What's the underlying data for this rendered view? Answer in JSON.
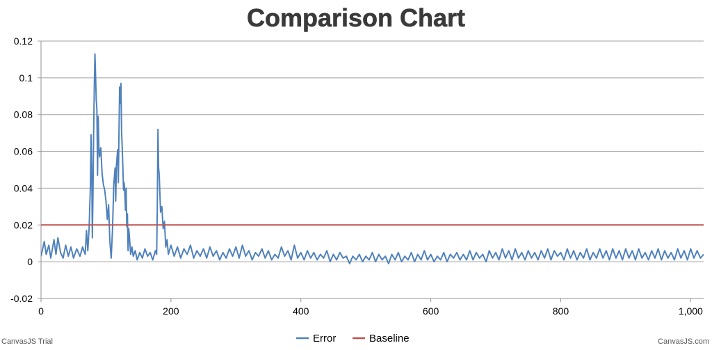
{
  "chart_data": {
    "type": "line",
    "title": "Comparison Chart",
    "xlabel": "",
    "ylabel": "",
    "xlim": [
      0,
      1020
    ],
    "ylim": [
      -0.02,
      0.12
    ],
    "x_ticks": [
      "0",
      "200",
      "400",
      "600",
      "800",
      "1,000"
    ],
    "x_tick_values": [
      0,
      200,
      400,
      600,
      800,
      1000
    ],
    "y_ticks": [
      "-0.02",
      "0",
      "0.02",
      "0.04",
      "0.06",
      "0.08",
      "0.1",
      "0.12"
    ],
    "y_tick_values": [
      -0.02,
      0,
      0.02,
      0.04,
      0.06,
      0.08,
      0.1,
      0.12
    ],
    "grid": "horizontal",
    "legend": "bottom-center",
    "series": [
      {
        "name": "Error",
        "color": "#4f81bc",
        "points": [
          [
            0,
            0.003
          ],
          [
            5,
            0.011
          ],
          [
            8,
            0.004
          ],
          [
            12,
            0.009
          ],
          [
            15,
            0.002
          ],
          [
            20,
            0.012
          ],
          [
            23,
            0.004
          ],
          [
            26,
            0.013
          ],
          [
            30,
            0.005
          ],
          [
            34,
            0.002
          ],
          [
            38,
            0.009
          ],
          [
            42,
            0.003
          ],
          [
            46,
            0.008
          ],
          [
            50,
            0.002
          ],
          [
            55,
            0.007
          ],
          [
            60,
            0.003
          ],
          [
            64,
            0.008
          ],
          [
            68,
            0.004
          ],
          [
            70,
            0.017
          ],
          [
            72,
            0.006
          ],
          [
            74,
            0.018
          ],
          [
            76,
            0.041
          ],
          [
            77,
            0.069
          ],
          [
            78,
            0.052
          ],
          [
            79,
            0.013
          ],
          [
            80,
            0.038
          ],
          [
            81,
            0.07
          ],
          [
            82,
            0.095
          ],
          [
            83,
            0.113
          ],
          [
            84,
            0.101
          ],
          [
            85,
            0.088
          ],
          [
            86,
            0.083
          ],
          [
            87,
            0.047
          ],
          [
            88,
            0.079
          ],
          [
            89,
            0.063
          ],
          [
            90,
            0.057
          ],
          [
            92,
            0.062
          ],
          [
            94,
            0.048
          ],
          [
            96,
            0.042
          ],
          [
            98,
            0.039
          ],
          [
            100,
            0.033
          ],
          [
            102,
            0.023
          ],
          [
            104,
            0.031
          ],
          [
            106,
            0.011
          ],
          [
            108,
            0.002
          ],
          [
            110,
            0.017
          ],
          [
            112,
            0.042
          ],
          [
            114,
            0.051
          ],
          [
            115,
            0.033
          ],
          [
            116,
            0.052
          ],
          [
            118,
            0.061
          ],
          [
            119,
            0.043
          ],
          [
            120,
            0.07
          ],
          [
            121,
            0.095
          ],
          [
            122,
            0.086
          ],
          [
            123,
            0.097
          ],
          [
            124,
            0.071
          ],
          [
            125,
            0.062
          ],
          [
            126,
            0.051
          ],
          [
            127,
            0.039
          ],
          [
            128,
            0.043
          ],
          [
            129,
            0.037
          ],
          [
            130,
            0.028
          ],
          [
            131,
            0.04
          ],
          [
            132,
            0.019
          ],
          [
            133,
            0.026
          ],
          [
            134,
            0.006
          ],
          [
            135,
            0.018
          ],
          [
            136,
            0.014
          ],
          [
            138,
            0.004
          ],
          [
            140,
            0.008
          ],
          [
            142,
            0.003
          ],
          [
            145,
            0.006
          ],
          [
            148,
            0.001
          ],
          [
            152,
            0.005
          ],
          [
            156,
            0.002
          ],
          [
            160,
            0.007
          ],
          [
            164,
            0.003
          ],
          [
            168,
            0.005
          ],
          [
            172,
            0.001
          ],
          [
            176,
            0.006
          ],
          [
            178,
            0.004
          ],
          [
            179,
            0.03
          ],
          [
            180,
            0.072
          ],
          [
            181,
            0.051
          ],
          [
            182,
            0.047
          ],
          [
            184,
            0.027
          ],
          [
            186,
            0.03
          ],
          [
            188,
            0.018
          ],
          [
            190,
            0.022
          ],
          [
            192,
            0.008
          ],
          [
            194,
            0.012
          ],
          [
            196,
            0.004
          ],
          [
            200,
            0.009
          ],
          [
            205,
            0.003
          ],
          [
            210,
            0.008
          ],
          [
            215,
            0.002
          ],
          [
            220,
            0.007
          ],
          [
            225,
            0.004
          ],
          [
            230,
            0.009
          ],
          [
            235,
            0.002
          ],
          [
            240,
            0.006
          ],
          [
            245,
            0.003
          ],
          [
            250,
            0.007
          ],
          [
            255,
            0.002
          ],
          [
            260,
            0.008
          ],
          [
            265,
            0.003
          ],
          [
            270,
            0.006
          ],
          [
            275,
            0.001
          ],
          [
            280,
            0.005
          ],
          [
            285,
            0.002
          ],
          [
            290,
            0.007
          ],
          [
            295,
            0.003
          ],
          [
            300,
            0.008
          ],
          [
            305,
            0.002
          ],
          [
            310,
            0.009
          ],
          [
            315,
            0.003
          ],
          [
            320,
            0.006
          ],
          [
            325,
            0.001
          ],
          [
            330,
            0.005
          ],
          [
            335,
            0.003
          ],
          [
            340,
            0.007
          ],
          [
            345,
            0.002
          ],
          [
            350,
            0.006
          ],
          [
            355,
            0.001
          ],
          [
            360,
            0.004
          ],
          [
            365,
            0.002
          ],
          [
            370,
            0.008
          ],
          [
            375,
            0.003
          ],
          [
            380,
            0.006
          ],
          [
            385,
            0.001
          ],
          [
            390,
            0.009
          ],
          [
            395,
            0.002
          ],
          [
            400,
            0.005
          ],
          [
            405,
            0.001
          ],
          [
            410,
            0.006
          ],
          [
            415,
            0.002
          ],
          [
            420,
            0.005
          ],
          [
            425,
            0.001
          ],
          [
            430,
            0.004
          ],
          [
            435,
            0.002
          ],
          [
            440,
            0.006
          ],
          [
            445,
            0.0
          ],
          [
            450,
            0.004
          ],
          [
            455,
            0.001
          ],
          [
            460,
            0.005
          ],
          [
            465,
            0.002
          ],
          [
            470,
            0.003
          ],
          [
            475,
            -0.001
          ],
          [
            480,
            0.003
          ],
          [
            485,
            0.001
          ],
          [
            490,
            0.004
          ],
          [
            495,
            0.0
          ],
          [
            500,
            0.003
          ],
          [
            505,
            0.001
          ],
          [
            510,
            0.005
          ],
          [
            515,
            0.0
          ],
          [
            520,
            0.004
          ],
          [
            525,
            0.001
          ],
          [
            530,
            0.003
          ],
          [
            535,
            -0.001
          ],
          [
            540,
            0.004
          ],
          [
            545,
            0.001
          ],
          [
            550,
            0.005
          ],
          [
            555,
            0.0
          ],
          [
            560,
            0.003
          ],
          [
            565,
            0.001
          ],
          [
            570,
            0.005
          ],
          [
            575,
            0.0
          ],
          [
            580,
            0.004
          ],
          [
            585,
            0.001
          ],
          [
            590,
            0.006
          ],
          [
            595,
            0.001
          ],
          [
            600,
            0.004
          ],
          [
            605,
            0.0
          ],
          [
            610,
            0.003
          ],
          [
            615,
            0.001
          ],
          [
            620,
            0.005
          ],
          [
            625,
            0.0
          ],
          [
            630,
            0.004
          ],
          [
            635,
            0.002
          ],
          [
            640,
            0.005
          ],
          [
            645,
            0.001
          ],
          [
            650,
            0.004
          ],
          [
            655,
            0.001
          ],
          [
            660,
            0.006
          ],
          [
            665,
            0.001
          ],
          [
            670,
            0.005
          ],
          [
            675,
            0.002
          ],
          [
            680,
            0.004
          ],
          [
            685,
            0.0
          ],
          [
            690,
            0.006
          ],
          [
            695,
            0.002
          ],
          [
            700,
            0.005
          ],
          [
            705,
            0.001
          ],
          [
            710,
            0.007
          ],
          [
            715,
            0.002
          ],
          [
            720,
            0.006
          ],
          [
            725,
            0.001
          ],
          [
            730,
            0.007
          ],
          [
            735,
            0.002
          ],
          [
            740,
            0.005
          ],
          [
            745,
            0.001
          ],
          [
            750,
            0.006
          ],
          [
            755,
            0.002
          ],
          [
            760,
            0.005
          ],
          [
            765,
            0.001
          ],
          [
            770,
            0.006
          ],
          [
            775,
            0.002
          ],
          [
            780,
            0.007
          ],
          [
            785,
            0.001
          ],
          [
            790,
            0.006
          ],
          [
            795,
            0.003
          ],
          [
            800,
            0.005
          ],
          [
            805,
            0.001
          ],
          [
            810,
            0.007
          ],
          [
            815,
            0.002
          ],
          [
            820,
            0.006
          ],
          [
            825,
            0.001
          ],
          [
            830,
            0.005
          ],
          [
            835,
            0.002
          ],
          [
            840,
            0.007
          ],
          [
            845,
            0.001
          ],
          [
            850,
            0.005
          ],
          [
            855,
            0.002
          ],
          [
            860,
            0.007
          ],
          [
            865,
            0.002
          ],
          [
            870,
            0.006
          ],
          [
            875,
            0.001
          ],
          [
            880,
            0.007
          ],
          [
            885,
            0.002
          ],
          [
            890,
            0.006
          ],
          [
            895,
            0.001
          ],
          [
            900,
            0.007
          ],
          [
            905,
            0.002
          ],
          [
            910,
            0.006
          ],
          [
            915,
            0.001
          ],
          [
            920,
            0.007
          ],
          [
            925,
            0.002
          ],
          [
            930,
            0.005
          ],
          [
            935,
            0.001
          ],
          [
            940,
            0.006
          ],
          [
            945,
            0.002
          ],
          [
            950,
            0.007
          ],
          [
            955,
            0.001
          ],
          [
            960,
            0.006
          ],
          [
            965,
            0.002
          ],
          [
            970,
            0.005
          ],
          [
            975,
            0.001
          ],
          [
            980,
            0.007
          ],
          [
            985,
            0.002
          ],
          [
            990,
            0.006
          ],
          [
            995,
            0.001
          ],
          [
            1000,
            0.007
          ],
          [
            1005,
            0.002
          ],
          [
            1010,
            0.006
          ],
          [
            1015,
            0.002
          ],
          [
            1020,
            0.004
          ]
        ]
      },
      {
        "name": "Baseline",
        "color": "#c0504e",
        "points": [
          [
            0,
            0.02
          ],
          [
            1020,
            0.02
          ]
        ]
      }
    ],
    "footer_left": "CanvasJS Trial",
    "footer_right": "CanvasJS.com"
  }
}
